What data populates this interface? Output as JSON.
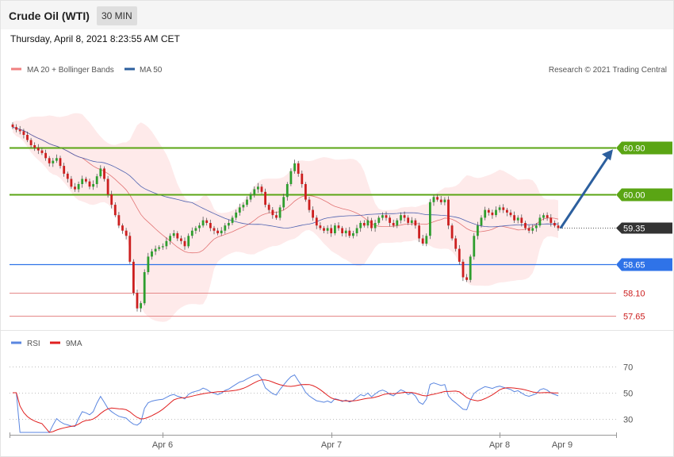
{
  "header": {
    "instrument": "Crude Oil (WTI)",
    "timeframe": "30 MIN",
    "timestamp": "Thursday, April 8, 2021 8:23:55 AM CET",
    "credit": "Research © 2021 Trading Central"
  },
  "colors": {
    "resistance": "#5aa514",
    "support": "#2f73e8",
    "support_minor": "#e58888",
    "current_price": "#333333",
    "bull_candle": "#2e9e2e",
    "bear_candle": "#cc1f1f",
    "bollinger_fill": "#fde3e3",
    "ma20": "#e27474",
    "ma50": "#4e62b0",
    "arrow": "#2c5f9e",
    "rsi_line": "#5a86e0",
    "rsi_ma": "#e02020"
  },
  "chart_data": [
    {
      "type": "candlestick",
      "legend": [
        {
          "label": "MA 20 + Bollinger Bands",
          "color": "#f08080"
        },
        {
          "label": "MA 50",
          "color": "#2c5f9e"
        }
      ],
      "ylim": [
        57.55,
        61.9
      ],
      "x_labels": [
        "Apr 6",
        "Apr 7",
        "Apr 8",
        "Apr 9"
      ],
      "levels": [
        {
          "value": 60.9,
          "label": "60.90",
          "kind": "resistance"
        },
        {
          "value": 60.0,
          "label": "60.00",
          "kind": "resistance"
        },
        {
          "value": 59.35,
          "label": "59.35",
          "kind": "current"
        },
        {
          "value": 58.65,
          "label": "58.65",
          "kind": "support"
        },
        {
          "value": 58.1,
          "label": "58.10",
          "kind": "support_minor"
        },
        {
          "value": 57.65,
          "label": "57.65",
          "kind": "support_minor"
        }
      ],
      "closes": [
        61.3,
        61.25,
        61.22,
        61.15,
        61.05,
        60.95,
        60.9,
        60.85,
        60.8,
        60.7,
        60.6,
        60.65,
        60.7,
        60.55,
        60.4,
        60.3,
        60.15,
        60.1,
        60.2,
        60.3,
        60.25,
        60.15,
        60.2,
        60.35,
        60.5,
        60.3,
        60.0,
        59.8,
        59.6,
        59.4,
        59.3,
        59.2,
        58.7,
        58.1,
        57.8,
        57.9,
        58.5,
        58.8,
        58.9,
        58.95,
        58.98,
        59.0,
        59.1,
        59.2,
        59.25,
        59.15,
        59.1,
        59.0,
        59.2,
        59.3,
        59.35,
        59.4,
        59.5,
        59.45,
        59.35,
        59.3,
        59.25,
        59.3,
        59.4,
        59.45,
        59.55,
        59.65,
        59.75,
        59.8,
        59.9,
        60.0,
        60.1,
        60.15,
        60.05,
        59.8,
        59.7,
        59.6,
        59.55,
        59.75,
        59.95,
        60.2,
        60.45,
        60.6,
        60.4,
        60.2,
        59.9,
        59.7,
        59.55,
        59.4,
        59.35,
        59.3,
        59.35,
        59.25,
        59.4,
        59.35,
        59.25,
        59.3,
        59.2,
        59.25,
        59.35,
        59.45,
        59.4,
        59.5,
        59.35,
        59.45,
        59.55,
        59.6,
        59.55,
        59.45,
        59.4,
        59.5,
        59.6,
        59.55,
        59.45,
        59.5,
        59.4,
        59.15,
        59.05,
        59.2,
        59.85,
        59.95,
        59.9,
        59.85,
        59.9,
        59.4,
        59.15,
        58.95,
        58.7,
        58.4,
        58.35,
        58.8,
        59.2,
        59.4,
        59.55,
        59.7,
        59.65,
        59.6,
        59.7,
        59.75,
        59.7,
        59.65,
        59.6,
        59.5,
        59.55,
        59.45,
        59.35,
        59.3,
        59.35,
        59.4,
        59.55,
        59.6,
        59.55,
        59.45,
        59.4,
        59.35
      ]
    },
    {
      "type": "line",
      "legend": [
        {
          "label": "RSI",
          "color": "#5a86e0"
        },
        {
          "label": "9MA",
          "color": "#e02020"
        }
      ],
      "ylim": [
        20,
        80
      ],
      "y_ticks": [
        30,
        50,
        70
      ]
    }
  ]
}
